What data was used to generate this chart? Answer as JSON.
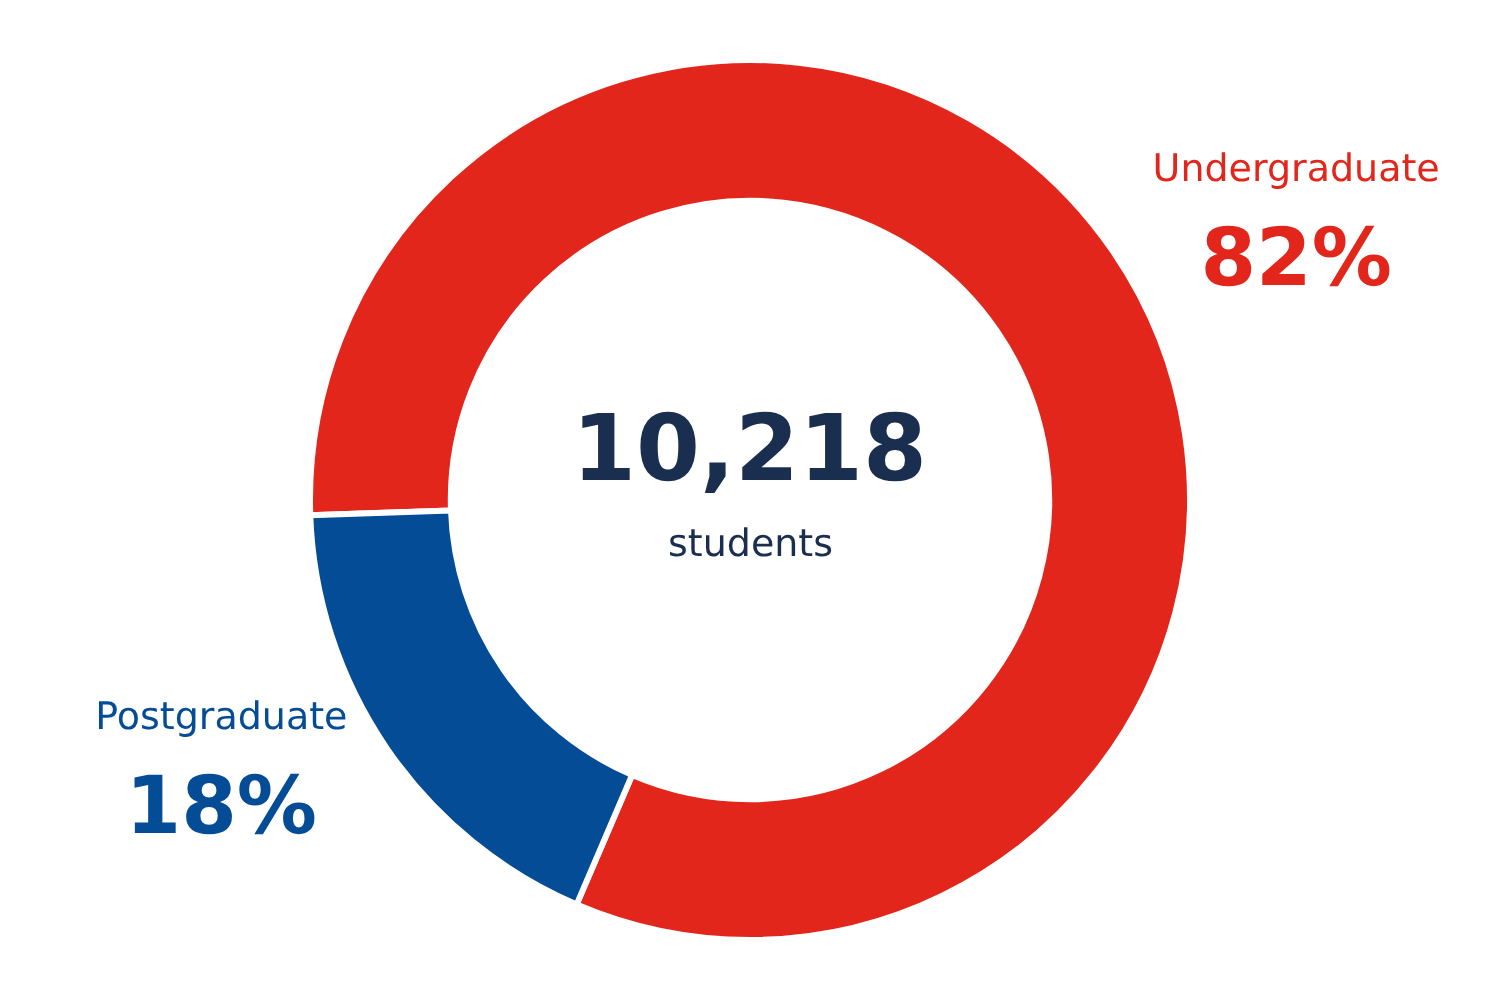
{
  "chart_data": {
    "type": "donut",
    "categories": [
      "Undergraduate",
      "Postgraduate"
    ],
    "values": [
      82,
      18
    ],
    "colors": [
      "#e3261b",
      "#044c95"
    ],
    "value_labels": [
      "82%",
      "18%"
    ],
    "annotations": [
      "10,218",
      "students"
    ],
    "legend": false
  }
}
